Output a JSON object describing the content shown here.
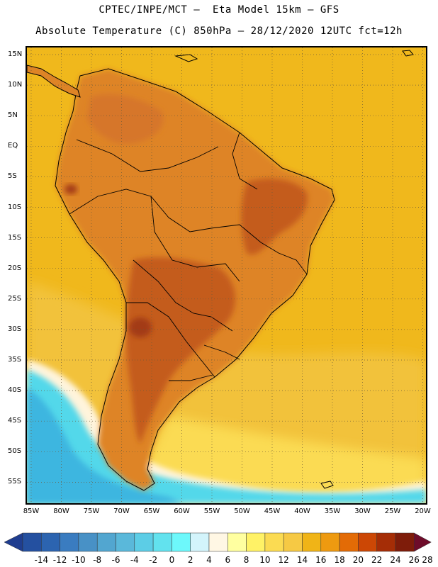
{
  "header": {
    "line1": "CPTEC/INPE/MCT –  Eta Model 15km – GFS",
    "line2": "Absolute Temperature (C) 850hPa – 28/12/2020 12UTC fct=12h"
  },
  "map": {
    "lat_labels": [
      "15N",
      "10N",
      "5N",
      "EQ",
      "5S",
      "10S",
      "15S",
      "20S",
      "25S",
      "30S",
      "35S",
      "40S",
      "45S",
      "50S",
      "55S"
    ],
    "lon_labels": [
      "85W",
      "80W",
      "75W",
      "70W",
      "65W",
      "60W",
      "55W",
      "50W",
      "45W",
      "40W",
      "35W",
      "30W",
      "25W",
      "20W"
    ],
    "colors": {
      "ocean_warm": "#f0b81c",
      "ocean_mid": "#f2c23a",
      "land_hot": "#de8426",
      "land_veryhot": "#c45c1c",
      "hotspot": "#a33a12",
      "cold_cyan": "#52d8ea",
      "cold_blue": "#3cb6e0",
      "pale": "#fff4dc"
    }
  },
  "colorbar": {
    "labels": [
      "-14",
      "-12",
      "-10",
      "-8",
      "-6",
      "-4",
      "-2",
      "0",
      "2",
      "4",
      "6",
      "8",
      "10",
      "12",
      "14",
      "16",
      "18",
      "20",
      "22",
      "24",
      "26",
      "28"
    ],
    "colors": [
      "#1f3d8f",
      "#2450a0",
      "#2c64b0",
      "#3a7cc0",
      "#4891c6",
      "#52a6d0",
      "#5ab8da",
      "#5ccde6",
      "#62e2ee",
      "#6df8fb",
      "#d3f4fb",
      "#fff7e4",
      "#ffffa0",
      "#fff266",
      "#fbdb52",
      "#f6c944",
      "#f0b417",
      "#ee9a10",
      "#e36b06",
      "#cc4705",
      "#a52d06",
      "#7e1c0a",
      "#6e0c2a"
    ]
  }
}
